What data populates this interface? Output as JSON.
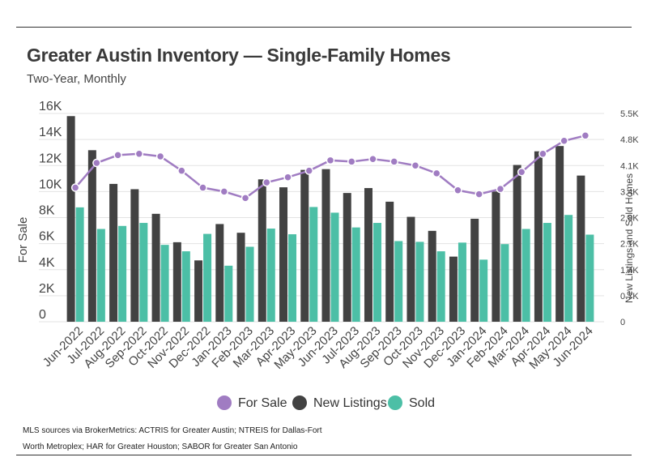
{
  "header": {
    "title": "Greater Austin Inventory — Single-Family Homes",
    "subtitle": "Two-Year, Monthly"
  },
  "footnote": "MLS sources via BrokerMetrics: ACTRIS for Greater Austin; NTREIS for Dallas-Fort Worth Metroplex; HAR for Greater Houston; SABOR for Greater San Antonio",
  "colors": {
    "for_sale": "#a07cc2",
    "new_listings": "#424242",
    "sold": "#4cbfa6",
    "grid": "#e3e3e3",
    "text": "#444444"
  },
  "chart_data": {
    "type": "bar",
    "categories": [
      "Jun-2022",
      "Jul-2022",
      "Aug-2022",
      "Sep-2022",
      "Oct-2022",
      "Nov-2022",
      "Dec-2022",
      "Jan-2023",
      "Feb-2023",
      "Mar-2023",
      "Apr-2023",
      "May-2023",
      "Jun-2023",
      "Jul-2023",
      "Aug-2023",
      "Sep-2023",
      "Oct-2023",
      "Nov-2023",
      "Dec-2023",
      "Jan-2024",
      "Feb-2024",
      "Mar-2024",
      "Apr-2024",
      "May-2024",
      "Jun-2024"
    ],
    "ylabel": "For Sale",
    "y2label": "New Listings and Sold Homes",
    "ylim": [
      0,
      16000
    ],
    "y2lim": [
      0,
      5500
    ],
    "yticks": [
      "0",
      "2K",
      "4K",
      "6K",
      "8K",
      "10K",
      "12K",
      "14K",
      "16K"
    ],
    "y2ticks": [
      "0",
      "0.7K",
      "1.4K",
      "2.1K",
      "2.8K",
      "3.4K",
      "4.1K",
      "4.8K",
      "5.5K"
    ],
    "legend_position": "bottom",
    "series": [
      {
        "name": "For Sale",
        "kind": "line",
        "axis": "left",
        "values": [
          10300,
          12200,
          12800,
          12900,
          12700,
          11600,
          10300,
          10000,
          9500,
          10700,
          11100,
          11600,
          12400,
          12300,
          12500,
          12300,
          12000,
          11400,
          10100,
          9800,
          10200,
          11500,
          12900,
          13900,
          14300
        ]
      },
      {
        "name": "New Listings",
        "kind": "bar",
        "axis": "right",
        "values": [
          5430,
          4530,
          3640,
          3500,
          2850,
          2100,
          1620,
          2580,
          2350,
          3760,
          3550,
          4010,
          4030,
          3400,
          3530,
          3170,
          2770,
          2400,
          1720,
          2720,
          3440,
          4140,
          4500,
          4640,
          3860
        ]
      },
      {
        "name": "Sold",
        "kind": "bar",
        "axis": "right",
        "values": [
          3020,
          2450,
          2530,
          2610,
          2030,
          1860,
          2320,
          1480,
          1980,
          2460,
          2310,
          3030,
          2880,
          2490,
          2610,
          2130,
          2110,
          1860,
          2090,
          1640,
          2050,
          2450,
          2610,
          2820,
          2300
        ]
      }
    ]
  }
}
